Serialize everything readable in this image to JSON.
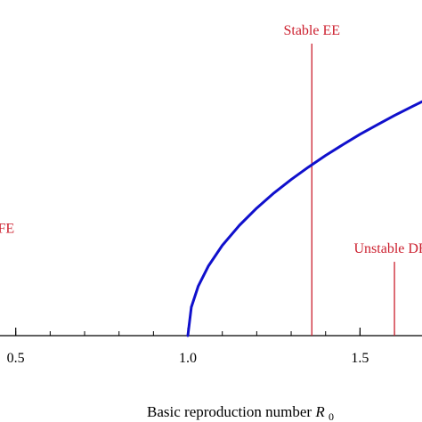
{
  "chart_data": {
    "type": "line",
    "xlabel": "Basic reproduction number",
    "xlabel_symbol": "R",
    "xlabel_subscript": "0",
    "xlim": [
      0.25,
      1.68
    ],
    "ylim": [
      0,
      1
    ],
    "x_ticks": [
      {
        "value": 0.5,
        "label": "0.5"
      },
      {
        "value": 1.0,
        "label": "1.0"
      },
      {
        "value": 1.5,
        "label": "1.5"
      }
    ],
    "x_minor_tick_step": 0.1,
    "series": [
      {
        "color": "#1010cc",
        "x": [
          1.0,
          1.01,
          1.03,
          1.06,
          1.1,
          1.15,
          1.2,
          1.25,
          1.3,
          1.35,
          1.4,
          1.45,
          1.5,
          1.55,
          1.6,
          1.65,
          1.68
        ],
        "y": [
          0.0,
          0.085,
          0.147,
          0.208,
          0.269,
          0.329,
          0.38,
          0.425,
          0.465,
          0.502,
          0.537,
          0.569,
          0.6,
          0.628,
          0.656,
          0.682,
          0.697
        ]
      }
    ],
    "annotations": [
      {
        "text": "Stable DFE",
        "x": 0.4,
        "y_top": 0.28,
        "color": "#cc1f2e"
      },
      {
        "text": "Stable EE",
        "x": 1.36,
        "y_top": 0.87,
        "color": "#cc1f2e"
      },
      {
        "text": "Unstable DFE",
        "x": 1.6,
        "y_top": 0.22,
        "color": "#cc1f2e"
      }
    ],
    "axis_color": "#000000"
  }
}
